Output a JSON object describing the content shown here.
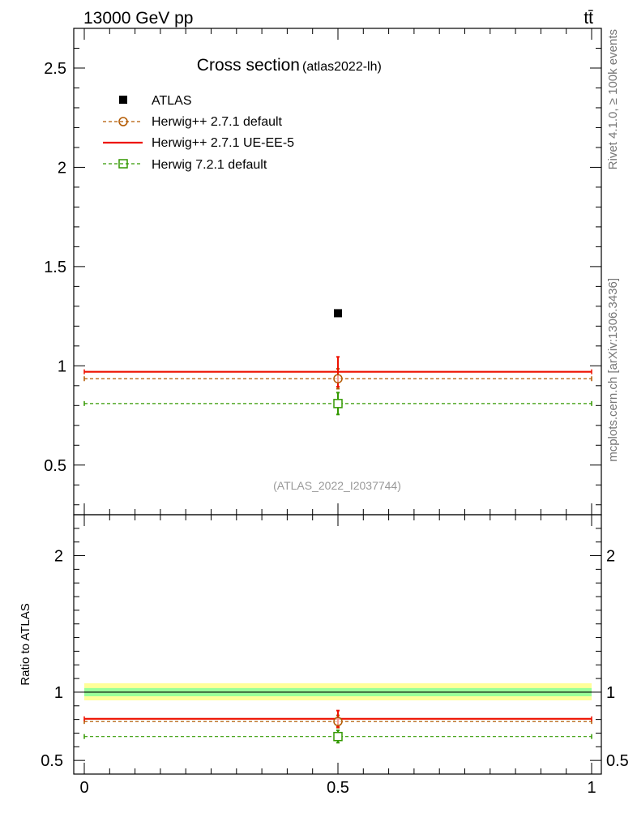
{
  "header": {
    "energy_label": "13000 GeV pp",
    "process_label": "tt̄"
  },
  "side_labels": {
    "rivet": "Rivet 4.1.0, ≥ 100k events",
    "source": "mcplots.cern.ch [arXiv:1306.3436]"
  },
  "colors": {
    "atlas": "#000000",
    "herwigpp_default": "#b35900",
    "herwigpp_ueee5": "#ee1100",
    "herwig7_default": "#339900",
    "band_inner": "#99ff99",
    "band_outer": "#ffff99"
  },
  "chart_data": [
    {
      "type": "scatter",
      "panel": "main",
      "title": "Cross section",
      "subtitle": "(atlas2022-lh)",
      "watermark": "(ATLAS_2022_I2037744)",
      "xlim": [
        0,
        1
      ],
      "ylim": [
        0.25,
        2.7
      ],
      "yticks_major": [
        0.5,
        1,
        1.5,
        2,
        2.5
      ],
      "ytick_labels": [
        "0.5",
        "1",
        "1.5",
        "2",
        "2.5"
      ],
      "series": [
        {
          "name": "ATLAS",
          "style": "data",
          "x": [
            0.5
          ],
          "y": [
            1.265
          ],
          "yerr": [
            0.0
          ]
        },
        {
          "name": "Herwig++ 2.7.1 default",
          "style": "dashed-circle",
          "x": [
            0.5
          ],
          "y": [
            0.935
          ],
          "yerr": [
            0.05
          ]
        },
        {
          "name": "Herwig++ 2.7.1 UE-EE-5",
          "style": "solid",
          "x": [
            0.5
          ],
          "y": [
            0.97
          ],
          "yerr": [
            0.075
          ]
        },
        {
          "name": "Herwig 7.2.1 default",
          "style": "dashed-square",
          "x": [
            0.5
          ],
          "y": [
            0.81
          ],
          "yerr": [
            0.055
          ]
        }
      ],
      "legend_position": "top-left"
    },
    {
      "type": "line",
      "panel": "ratio",
      "ylabel": "Ratio to ATLAS",
      "xlim": [
        0,
        1
      ],
      "ylim": [
        0.4,
        2.3
      ],
      "yticks_major": [
        0.5,
        1,
        2
      ],
      "ytick_labels": [
        "0.5",
        "1",
        "2"
      ],
      "xticks_major": [
        0,
        0.5,
        1
      ],
      "xtick_labels": [
        "0",
        "0.5",
        "1"
      ],
      "band_inner": [
        0.97,
        1.03
      ],
      "band_outer": [
        0.94,
        1.065
      ],
      "series": [
        {
          "name": "Herwig++ 2.7.1 default",
          "x": [
            0.5
          ],
          "y": [
            0.785
          ],
          "yerr": [
            0.045
          ]
        },
        {
          "name": "Herwig++ 2.7.1 UE-EE-5",
          "x": [
            0.5
          ],
          "y": [
            0.805
          ],
          "yerr": [
            0.06
          ]
        },
        {
          "name": "Herwig 7.2.1 default",
          "x": [
            0.5
          ],
          "y": [
            0.675
          ],
          "yerr": [
            0.045
          ]
        }
      ]
    }
  ]
}
